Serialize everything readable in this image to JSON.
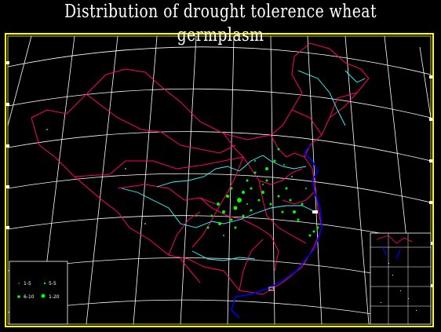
{
  "title": "Distribution of drought tolerence wheat germplasm",
  "legend": {
    "items": [
      {
        "label": "1-5",
        "size": "smallest"
      },
      {
        "label": "5-5",
        "size": "small"
      },
      {
        "label": "6-10",
        "size": "medium"
      },
      {
        "label": "1-20",
        "size": "large"
      }
    ]
  },
  "colors": {
    "background": "#000000",
    "frame": "#ffff00",
    "graticule": "#ffffff",
    "province_borders": "#ff0066",
    "rivers": "#33ffff",
    "coastline": "#0000ff",
    "germplasm_points": "#00ff00"
  }
}
